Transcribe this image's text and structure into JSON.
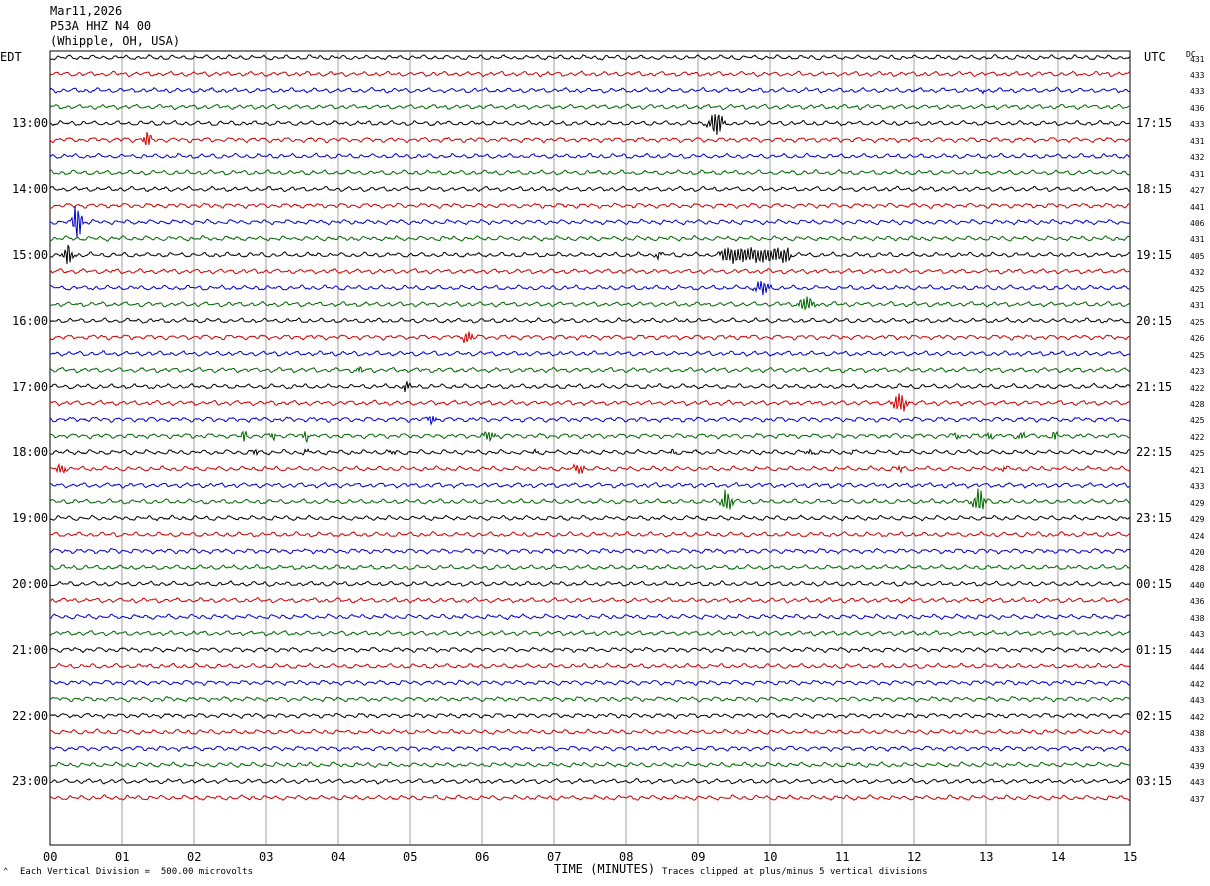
{
  "header": {
    "date": "Mar11,2026",
    "station": "P53A HHZ N4 00",
    "location": "(Whipple, OH, USA)"
  },
  "left_zone": "EDT",
  "right_zone": "UTC",
  "dc_label": "DC",
  "footer": {
    "scale_note": "Each Vertical Division =  500.00 microvolts",
    "clip_note": "Traces clipped at plus/minus 5 vertical divisions"
  },
  "colors": {
    "palette": [
      "#000000",
      "#cc0000",
      "#0000cc",
      "#006600"
    ]
  },
  "chart_data": {
    "type": "line",
    "xlabel": "TIME (MINUTES)",
    "x_ticks": [
      "00",
      "01",
      "02",
      "03",
      "04",
      "05",
      "06",
      "07",
      "08",
      "09",
      "10",
      "11",
      "12",
      "13",
      "14",
      "15"
    ],
    "xlim": [
      0,
      15
    ],
    "left_hour_labels": [
      "13:00",
      "14:00",
      "15:00",
      "16:00",
      "17:00",
      "18:00",
      "19:00",
      "20:00",
      "21:00",
      "22:00",
      "23:00"
    ],
    "right_hour_labels": [
      "17:15",
      "18:15",
      "19:15",
      "20:15",
      "21:15",
      "22:15",
      "23:15",
      "00:15",
      "01:15",
      "02:15",
      "03:15"
    ],
    "dc_offsets": [
      431,
      433,
      433,
      436,
      433,
      431,
      432,
      431,
      427,
      441,
      406,
      431,
      405,
      432,
      425,
      431,
      425,
      426,
      425,
      423,
      422,
      428,
      425,
      422,
      425,
      421,
      433,
      429,
      429,
      424,
      420,
      428,
      440,
      436,
      438,
      443,
      444,
      444,
      442,
      443,
      442,
      438,
      433,
      439,
      443,
      437
    ],
    "events": [
      {
        "trace": 5,
        "minute": 1.35,
        "amp": 3.0,
        "dur": 0.1
      },
      {
        "trace": 4,
        "minute": 9.25,
        "amp": 5.0,
        "dur": 0.18
      },
      {
        "trace": 2,
        "minute": 12.95,
        "amp": 1.2,
        "dur": 0.05
      },
      {
        "trace": 10,
        "minute": 0.38,
        "amp": 7.0,
        "dur": 0.12
      },
      {
        "trace": 12,
        "minute": 0.25,
        "amp": 4.0,
        "dur": 0.12
      },
      {
        "trace": 12,
        "minute": 8.45,
        "amp": 1.5,
        "dur": 0.08
      },
      {
        "trace": 12,
        "minute": 9.8,
        "amp": 2.6,
        "dur": 0.9,
        "sustained": true
      },
      {
        "trace": 14,
        "minute": 9.9,
        "amp": 2.5,
        "dur": 0.2
      },
      {
        "trace": 15,
        "minute": 10.5,
        "amp": 3.0,
        "dur": 0.2
      },
      {
        "trace": 17,
        "minute": 5.8,
        "amp": 2.5,
        "dur": 0.12
      },
      {
        "trace": 19,
        "minute": 4.3,
        "amp": 1.2,
        "dur": 0.1
      },
      {
        "trace": 20,
        "minute": 4.95,
        "amp": 2.0,
        "dur": 0.1
      },
      {
        "trace": 21,
        "minute": 11.8,
        "amp": 4.0,
        "dur": 0.18
      },
      {
        "trace": 22,
        "minute": 5.3,
        "amp": 1.8,
        "dur": 0.1
      },
      {
        "trace": 23,
        "minute": 2.7,
        "amp": 2.2,
        "dur": 0.08
      },
      {
        "trace": 23,
        "minute": 3.1,
        "amp": 1.6,
        "dur": 0.08
      },
      {
        "trace": 23,
        "minute": 3.55,
        "amp": 2.0,
        "dur": 0.08
      },
      {
        "trace": 23,
        "minute": 6.1,
        "amp": 2.0,
        "dur": 0.15
      },
      {
        "trace": 23,
        "minute": 12.6,
        "amp": 1.5,
        "dur": 0.08
      },
      {
        "trace": 23,
        "minute": 13.05,
        "amp": 1.5,
        "dur": 0.08
      },
      {
        "trace": 23,
        "minute": 13.5,
        "amp": 1.4,
        "dur": 0.1
      },
      {
        "trace": 23,
        "minute": 13.95,
        "amp": 2.2,
        "dur": 0.08
      },
      {
        "trace": 24,
        "minute": 2.85,
        "amp": 1.2,
        "dur": 0.08
      },
      {
        "trace": 24,
        "minute": 3.55,
        "amp": 0.8,
        "dur": 0.1
      },
      {
        "trace": 24,
        "minute": 4.75,
        "amp": 0.8,
        "dur": 0.1
      },
      {
        "trace": 24,
        "minute": 6.75,
        "amp": 0.8,
        "dur": 0.1
      },
      {
        "trace": 24,
        "minute": 8.65,
        "amp": 0.9,
        "dur": 0.1
      },
      {
        "trace": 24,
        "minute": 10.55,
        "amp": 0.9,
        "dur": 0.1
      },
      {
        "trace": 24,
        "minute": 11.15,
        "amp": 0.8,
        "dur": 0.08
      },
      {
        "trace": 25,
        "minute": 0.15,
        "amp": 2.0,
        "dur": 0.12
      },
      {
        "trace": 25,
        "minute": 7.35,
        "amp": 1.8,
        "dur": 0.15
      },
      {
        "trace": 25,
        "minute": 11.8,
        "amp": 1.2,
        "dur": 0.1
      },
      {
        "trace": 25,
        "minute": 13.25,
        "amp": 1.0,
        "dur": 0.08
      },
      {
        "trace": 27,
        "minute": 9.4,
        "amp": 4.0,
        "dur": 0.15
      },
      {
        "trace": 27,
        "minute": 12.9,
        "amp": 4.5,
        "dur": 0.15
      }
    ]
  }
}
